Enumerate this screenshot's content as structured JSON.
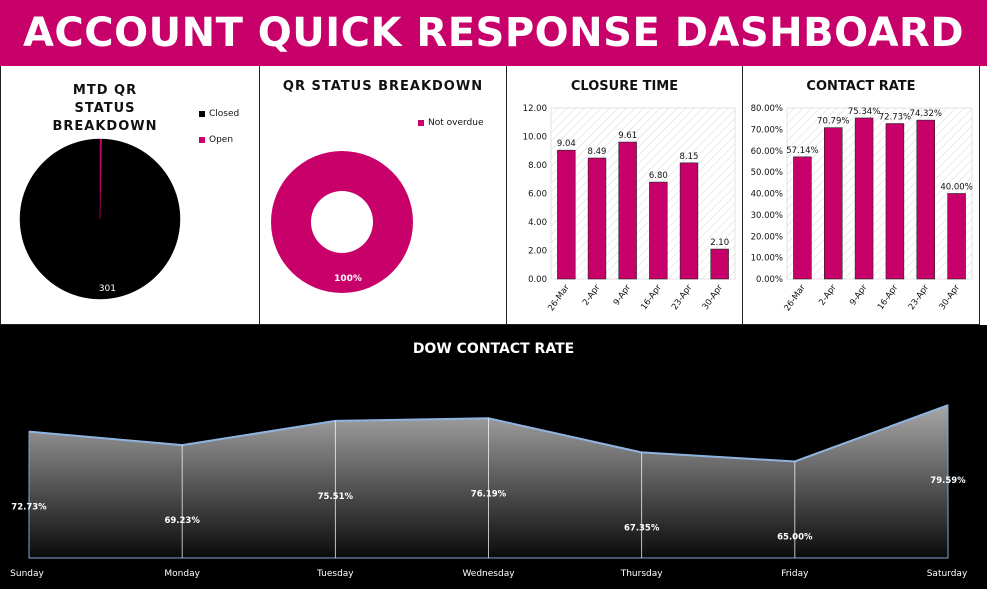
{
  "header": {
    "title": "ACCOUNT QUICK RESPONSE DASHBOARD"
  },
  "colors": {
    "accent": "#c8006a",
    "closed": "#000000",
    "background": "#ffffff"
  },
  "chart_data": [
    {
      "id": "mtd_status",
      "type": "pie",
      "title": "MTD QR STATUS BREAKDOWN",
      "categories": [
        "Closed",
        "Open"
      ],
      "values": [
        301,
        1
      ],
      "colors": [
        "#000000",
        "#c8006a"
      ],
      "data_labels": [
        "301",
        ""
      ],
      "legend_position": "right"
    },
    {
      "id": "qr_status",
      "type": "pie",
      "subtype": "donut",
      "title": "QR STATUS BREAKDOWN",
      "categories": [
        "Not overdue"
      ],
      "values": [
        100
      ],
      "colors": [
        "#c8006a"
      ],
      "data_labels": [
        "100%"
      ],
      "legend_position": "right"
    },
    {
      "id": "closure_time",
      "type": "bar",
      "title": "CLOSURE TIME",
      "categories": [
        "26-Mar",
        "2-Apr",
        "9-Apr",
        "16-Apr",
        "23-Apr",
        "30-Apr"
      ],
      "values": [
        9.04,
        8.49,
        9.61,
        6.8,
        8.15,
        2.1
      ],
      "data_labels": [
        "9.04",
        "8.49",
        "9.61",
        "6.80",
        "8.15",
        "2.10"
      ],
      "ylim": [
        0,
        12
      ],
      "yticks": [
        "0.00",
        "2.00",
        "4.00",
        "6.00",
        "8.00",
        "10.00",
        "12.00"
      ],
      "color": "#c8006a"
    },
    {
      "id": "contact_rate",
      "type": "bar",
      "title": "CONTACT RATE",
      "categories": [
        "26-Mar",
        "2-Apr",
        "9-Apr",
        "16-Apr",
        "23-Apr",
        "30-Apr"
      ],
      "values": [
        57.14,
        70.79,
        75.34,
        72.73,
        74.32,
        40.0
      ],
      "data_labels": [
        "57.14%",
        "70.79%",
        "75.34%",
        "72.73%",
        "74.32%",
        "40.00%"
      ],
      "ylim": [
        0,
        80
      ],
      "yticks": [
        "0.00%",
        "10.00%",
        "20.00%",
        "30.00%",
        "40.00%",
        "50.00%",
        "60.00%",
        "70.00%",
        "80.00%"
      ],
      "color": "#c8006a"
    },
    {
      "id": "dow_contact_rate",
      "type": "area",
      "title": "DOW CONTACT RATE",
      "categories": [
        "Sunday",
        "Monday",
        "Tuesday",
        "Wednesday",
        "Thursday",
        "Friday",
        "Saturday"
      ],
      "values": [
        72.73,
        69.23,
        75.51,
        76.19,
        67.35,
        65.0,
        79.59
      ],
      "data_labels": [
        "72.73%",
        "69.23%",
        "75.51%",
        "76.19%",
        "67.35%",
        "65.00%",
        "79.59%"
      ]
    }
  ]
}
